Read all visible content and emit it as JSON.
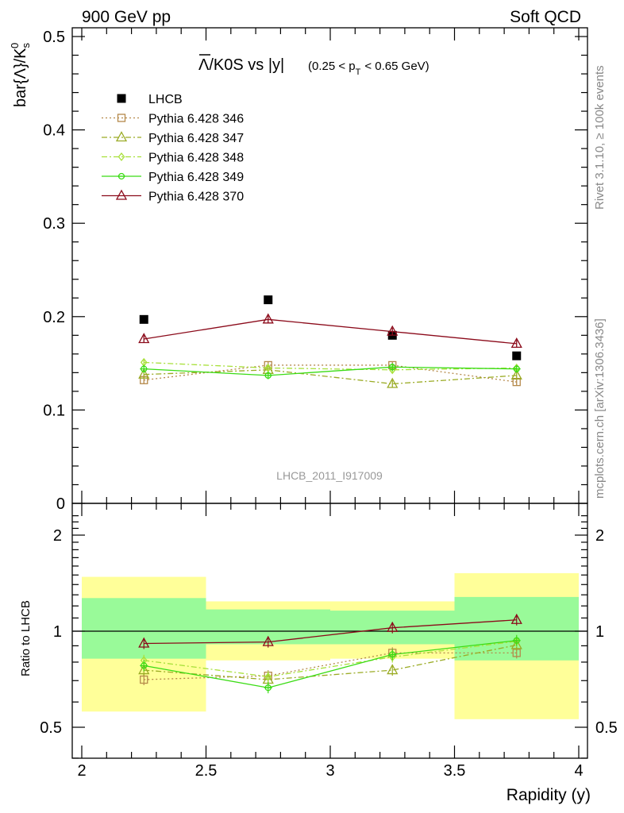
{
  "header": {
    "left": "900 GeV pp",
    "right": "Soft QCD"
  },
  "side_labels": {
    "rivet": "Rivet 3.1.10, ≥ 100k events",
    "mcplots": "mcplots.cern.ch [arXiv:1306.3436]"
  },
  "chart_data": {
    "type": "scatter",
    "title": "Λ̅/K0S vs |y|",
    "title_main": "/K0S vs |y|",
    "title_lambda": "Λ",
    "title_sub": "(0.25 < p",
    "title_sub_T": "T",
    "title_sub_end": "< 0.65 GeV)",
    "ylabel_main": "bar{Λ}/K",
    "ylabel_sup": "0",
    "ylabel_sub": "s",
    "ylabel_ratio": "Ratio to LHCB",
    "xlabel": "Rapidity (y)",
    "watermark": "LHCB_2011_I917009",
    "xlim": [
      2,
      4
    ],
    "ylim_main": [
      0,
      0.52
    ],
    "ylim_ratio": [
      0.35,
      2.35
    ],
    "x_ticks": [
      "2",
      "2.5",
      "3",
      "3.5",
      "4"
    ],
    "y_ticks_main": [
      "0",
      "0.1",
      "0.2",
      "0.3",
      "0.4",
      "0.5"
    ],
    "y_ticks_ratio": [
      "0.5",
      "1",
      "2"
    ],
    "x": [
      2.25,
      2.75,
      3.25,
      3.75
    ],
    "x_bins": [
      [
        2.0,
        2.5
      ],
      [
        2.5,
        3.0
      ],
      [
        3.0,
        3.5
      ],
      [
        3.5,
        4.0
      ]
    ],
    "series": [
      {
        "name": "LHCB",
        "color": "#000000",
        "marker": "filled-square",
        "line": "none",
        "values": [
          0.197,
          0.218,
          0.18,
          0.158
        ],
        "errors": [
          0.003,
          0.003,
          0.003,
          0.003
        ],
        "ratio": [
          1.0,
          1.0,
          1.0,
          1.0
        ]
      },
      {
        "name": "Pythia 6.428 346",
        "color": "#b5894a",
        "marker": "open-square",
        "line": "dotted",
        "values": [
          0.132,
          0.148,
          0.148,
          0.13
        ],
        "errors": [
          0.004,
          0.004,
          0.004,
          0.004
        ],
        "ratio": [
          0.705,
          0.725,
          0.855,
          0.855
        ]
      },
      {
        "name": "Pythia 6.428 347",
        "color": "#9aab24",
        "marker": "open-triangle",
        "line": "dashdot",
        "values": [
          0.138,
          0.143,
          0.128,
          0.137
        ],
        "errors": [
          0.004,
          0.004,
          0.004,
          0.004
        ],
        "ratio": [
          0.755,
          0.705,
          0.755,
          0.905
        ]
      },
      {
        "name": "Pythia 6.428 348",
        "color": "#a8e03a",
        "marker": "open-diamond",
        "line": "dashdot",
        "values": [
          0.151,
          0.145,
          0.143,
          0.145
        ],
        "errors": [
          0.004,
          0.004,
          0.004,
          0.004
        ],
        "ratio": [
          0.81,
          0.72,
          0.83,
          0.93
        ]
      },
      {
        "name": "Pythia 6.428 349",
        "color": "#3adc14",
        "marker": "open-circle",
        "line": "solid",
        "values": [
          0.144,
          0.137,
          0.146,
          0.144
        ],
        "errors": [
          0.004,
          0.004,
          0.004,
          0.004
        ],
        "ratio": [
          0.78,
          0.665,
          0.845,
          0.935
        ]
      },
      {
        "name": "Pythia 6.428 370",
        "color": "#8b0a1a",
        "marker": "open-triangle",
        "line": "solid",
        "values": [
          0.176,
          0.197,
          0.184,
          0.171
        ],
        "errors": [
          0.004,
          0.004,
          0.004,
          0.004
        ],
        "ratio": [
          0.915,
          0.925,
          1.025,
          1.085
        ]
      }
    ],
    "ratio_bands": {
      "green": [
        [
          0.82,
          1.27
        ],
        [
          0.91,
          1.17
        ],
        [
          0.91,
          1.16
        ],
        [
          0.81,
          1.28
        ]
      ],
      "yellow": [
        [
          0.56,
          1.48
        ],
        [
          0.81,
          1.24
        ],
        [
          0.82,
          1.24
        ],
        [
          0.53,
          1.52
        ]
      ],
      "green_color": "#99fa99",
      "yellow_color": "#ffff99"
    }
  }
}
